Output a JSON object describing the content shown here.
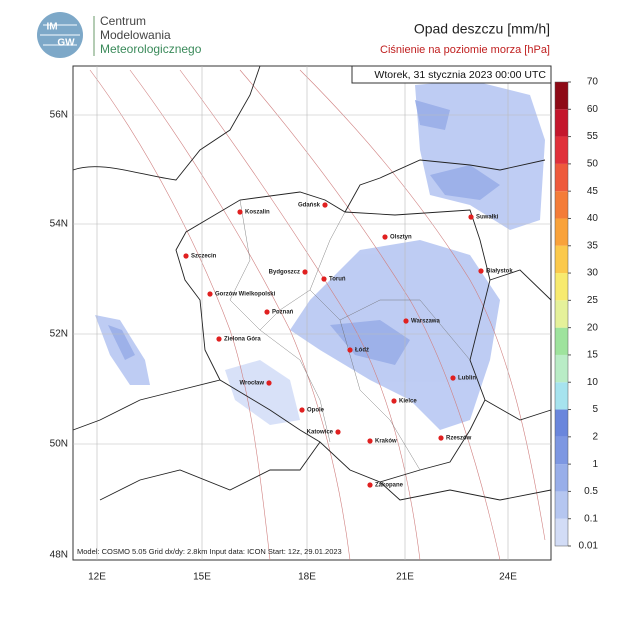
{
  "header": {
    "logo": [
      "IM",
      "GW"
    ],
    "org": [
      "Centrum",
      "Modelowania",
      "Meteorologicznego"
    ],
    "title": "Opad deszczu [mm/h]",
    "subtitle": "Ciśnienie na poziomie morza [hPa]"
  },
  "map": {
    "valid_time": "Wtorek, 31 stycznia 2023 00:00 UTC",
    "footer": "Model: COSMO 5.05  Grid dx/dy: 2.8km  Input data: ICON  Start: 12z, 29.01.2023",
    "lat_labels": [
      "56N",
      "54N",
      "52N",
      "50N",
      "48N"
    ],
    "lon_labels": [
      "12E",
      "15E",
      "18E",
      "21E",
      "24E"
    ],
    "cities": [
      "Gdańsk",
      "Koszalin",
      "Szczecin",
      "Olsztyn",
      "Suwałki",
      "Białystok",
      "Bydgoszcz",
      "Toruń",
      "Gorzów Wielkopolski",
      "Poznań",
      "Warszawa",
      "Zielona Góra",
      "Łódź",
      "Lublin",
      "Wrocław",
      "Kielce",
      "Opole",
      "Katowice",
      "Kraków",
      "Rzeszów",
      "Zakopane"
    ]
  },
  "colorbar": {
    "levels": [
      0.01,
      0.1,
      0.5,
      1,
      2,
      5,
      10,
      15,
      20,
      25,
      30,
      35,
      40,
      45,
      50,
      55,
      60,
      70
    ],
    "colors": [
      "#d2dcf6",
      "#b5c6f0",
      "#98aee9",
      "#7d97e2",
      "#6a86dc",
      "#a6e3ee",
      "#b9ecc6",
      "#9ee39d",
      "#e5f19a",
      "#f7ea6e",
      "#fbc94c",
      "#f9a23a",
      "#f47c38",
      "#ee5a3c",
      "#e0303a",
      "#c4162c",
      "#8e0a16"
    ]
  }
}
